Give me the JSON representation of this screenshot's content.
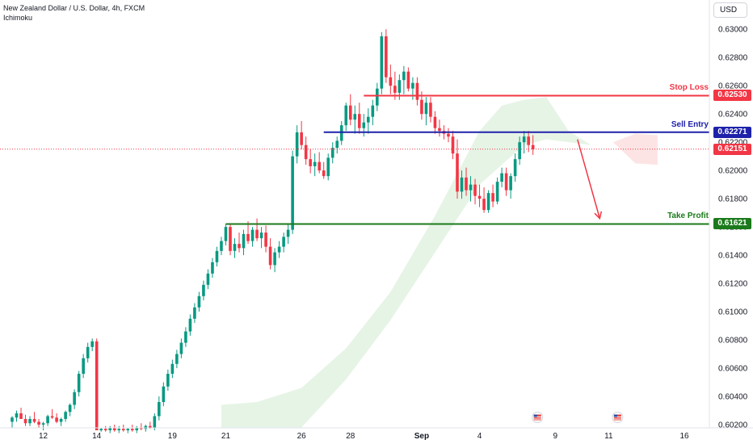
{
  "header": {
    "symbol_title": "New Zealand Dollar / U.S. Dollar, 4h, FXCM",
    "indicator": "Ichimoku",
    "currency_button": "USD"
  },
  "levels": {
    "stop_loss": {
      "label": "Stop Loss",
      "price": "0.62530",
      "value": 0.6253,
      "color": "#f23645"
    },
    "sell_entry": {
      "label": "Sell Entry",
      "price": "0.62271",
      "value": 0.62271,
      "color": "#1e22aa"
    },
    "current": {
      "price": "0.62151",
      "value": 0.62151,
      "color": "#f23645"
    },
    "take_profit": {
      "label": "Take Profit",
      "price": "0.61621",
      "value": 0.61621,
      "color": "#1b7a1b"
    }
  },
  "colors": {
    "bull": "#089981",
    "bear": "#f23645",
    "cloud": "#e6f4e6",
    "cloud_bear": "#fde4e4",
    "arrow": "#f23645"
  },
  "chart_data": {
    "type": "candlestick",
    "title": "New Zealand Dollar / U.S. Dollar, 4h, FXCM",
    "ylim": [
      0.6016,
      0.6315
    ],
    "y_ticks": [
      "0.63000",
      "0.62800",
      "0.62600",
      "0.62400",
      "0.62200",
      "0.62000",
      "0.61800",
      "0.61600",
      "0.61400",
      "0.61200",
      "0.61000",
      "0.60800",
      "0.60600",
      "0.60400",
      "0.60200"
    ],
    "y_tick_values": [
      0.63,
      0.628,
      0.626,
      0.624,
      0.622,
      0.62,
      0.618,
      0.616,
      0.614,
      0.612,
      0.61,
      0.608,
      0.606,
      0.604,
      0.602
    ],
    "x_ticks": [
      "12",
      "14",
      "19",
      "21",
      "26",
      "28",
      "Sep",
      "4",
      "9",
      "11",
      "16"
    ],
    "x_tick_index": [
      7,
      19,
      36,
      48,
      65,
      76,
      92,
      105,
      122,
      134,
      151
    ],
    "candles": [
      [
        0.6022,
        0.6026,
        0.6018,
        0.6025
      ],
      [
        0.6025,
        0.603,
        0.6022,
        0.6028
      ],
      [
        0.6028,
        0.6032,
        0.6024,
        0.6024
      ],
      [
        0.6024,
        0.6027,
        0.6019,
        0.6021
      ],
      [
        0.6021,
        0.6026,
        0.6019,
        0.6024
      ],
      [
        0.6024,
        0.6029,
        0.6021,
        0.6022
      ],
      [
        0.6022,
        0.6024,
        0.6018,
        0.602
      ],
      [
        0.602,
        0.6022,
        0.6016,
        0.6021
      ],
      [
        0.6021,
        0.6027,
        0.6019,
        0.6026
      ],
      [
        0.6026,
        0.6031,
        0.6024,
        0.6025
      ],
      [
        0.6025,
        0.6028,
        0.6021,
        0.6022
      ],
      [
        0.6022,
        0.6025,
        0.6019,
        0.6024
      ],
      [
        0.6024,
        0.603,
        0.6022,
        0.6029
      ],
      [
        0.6029,
        0.6035,
        0.6026,
        0.6034
      ],
      [
        0.6034,
        0.6045,
        0.6031,
        0.6043
      ],
      [
        0.6043,
        0.6058,
        0.604,
        0.6056
      ],
      [
        0.6056,
        0.607,
        0.6053,
        0.6067
      ],
      [
        0.6067,
        0.6078,
        0.6064,
        0.6075
      ],
      [
        0.6075,
        0.6081,
        0.6072,
        0.6079
      ],
      [
        0.6079,
        0.6081,
        0.6016,
        0.6016
      ],
      [
        0.6016,
        0.6018,
        0.6015,
        0.6017
      ],
      [
        0.6017,
        0.6019,
        0.6015,
        0.6016
      ],
      [
        0.6016,
        0.6019,
        0.6014,
        0.6018
      ],
      [
        0.6018,
        0.602,
        0.6015,
        0.6016
      ],
      [
        0.6016,
        0.6019,
        0.6014,
        0.6017
      ],
      [
        0.6017,
        0.602,
        0.6015,
        0.6016
      ],
      [
        0.6016,
        0.6018,
        0.6014,
        0.6017
      ],
      [
        0.6017,
        0.602,
        0.6015,
        0.6016
      ],
      [
        0.6016,
        0.6019,
        0.6014,
        0.6018
      ],
      [
        0.6018,
        0.6021,
        0.6016,
        0.6017
      ],
      [
        0.6017,
        0.602,
        0.6015,
        0.6019
      ],
      [
        0.6019,
        0.6022,
        0.6017,
        0.6018
      ],
      [
        0.6018,
        0.6028,
        0.6016,
        0.6026
      ],
      [
        0.6026,
        0.604,
        0.6023,
        0.6036
      ],
      [
        0.6036,
        0.605,
        0.6033,
        0.6047
      ],
      [
        0.6047,
        0.6059,
        0.6044,
        0.6056
      ],
      [
        0.6056,
        0.6066,
        0.6053,
        0.6063
      ],
      [
        0.6063,
        0.6073,
        0.606,
        0.607
      ],
      [
        0.607,
        0.6081,
        0.6067,
        0.6078
      ],
      [
        0.6078,
        0.6089,
        0.6075,
        0.6086
      ],
      [
        0.6086,
        0.6098,
        0.6083,
        0.6095
      ],
      [
        0.6095,
        0.6106,
        0.6092,
        0.6103
      ],
      [
        0.6103,
        0.6114,
        0.61,
        0.6111
      ],
      [
        0.6111,
        0.6122,
        0.6108,
        0.6119
      ],
      [
        0.6119,
        0.613,
        0.6116,
        0.6127
      ],
      [
        0.6127,
        0.6138,
        0.6124,
        0.6135
      ],
      [
        0.6135,
        0.6146,
        0.6132,
        0.6143
      ],
      [
        0.6143,
        0.6153,
        0.614,
        0.615
      ],
      [
        0.615,
        0.6162,
        0.6147,
        0.616
      ],
      [
        0.616,
        0.6162,
        0.614,
        0.6143
      ],
      [
        0.6143,
        0.6152,
        0.6138,
        0.6148
      ],
      [
        0.6148,
        0.6156,
        0.6142,
        0.6145
      ],
      [
        0.6145,
        0.6158,
        0.614,
        0.6155
      ],
      [
        0.6155,
        0.6164,
        0.6148,
        0.615
      ],
      [
        0.615,
        0.616,
        0.6146,
        0.6158
      ],
      [
        0.6158,
        0.6166,
        0.615,
        0.6152
      ],
      [
        0.6152,
        0.616,
        0.6145,
        0.6156
      ],
      [
        0.6156,
        0.6161,
        0.6142,
        0.6146
      ],
      [
        0.6146,
        0.6152,
        0.613,
        0.6133
      ],
      [
        0.6133,
        0.6145,
        0.6128,
        0.6142
      ],
      [
        0.6142,
        0.615,
        0.6138,
        0.6146
      ],
      [
        0.6146,
        0.6156,
        0.6142,
        0.6153
      ],
      [
        0.6153,
        0.6162,
        0.6148,
        0.6158
      ],
      [
        0.6158,
        0.6214,
        0.6155,
        0.621
      ],
      [
        0.621,
        0.6232,
        0.6205,
        0.6227
      ],
      [
        0.6227,
        0.6235,
        0.6215,
        0.6218
      ],
      [
        0.6218,
        0.6224,
        0.6204,
        0.6208
      ],
      [
        0.6208,
        0.6215,
        0.6198,
        0.6203
      ],
      [
        0.6203,
        0.6212,
        0.6196,
        0.6206
      ],
      [
        0.6206,
        0.6213,
        0.6198,
        0.62
      ],
      [
        0.62,
        0.6206,
        0.6194,
        0.6196
      ],
      [
        0.6196,
        0.6212,
        0.6193,
        0.6209
      ],
      [
        0.6209,
        0.622,
        0.6205,
        0.6216
      ],
      [
        0.6216,
        0.6224,
        0.6212,
        0.6221
      ],
      [
        0.6221,
        0.6235,
        0.6218,
        0.6232
      ],
      [
        0.6232,
        0.6248,
        0.6228,
        0.6246
      ],
      [
        0.6246,
        0.6254,
        0.6232,
        0.6236
      ],
      [
        0.6236,
        0.6246,
        0.6226,
        0.624
      ],
      [
        0.624,
        0.6248,
        0.6226,
        0.623
      ],
      [
        0.623,
        0.624,
        0.6224,
        0.6234
      ],
      [
        0.6234,
        0.6244,
        0.6226,
        0.6238
      ],
      [
        0.6238,
        0.625,
        0.6232,
        0.6246
      ],
      [
        0.6246,
        0.6262,
        0.6242,
        0.6258
      ],
      [
        0.6258,
        0.6298,
        0.6254,
        0.6295
      ],
      [
        0.6295,
        0.63,
        0.6262,
        0.6266
      ],
      [
        0.6266,
        0.6275,
        0.6254,
        0.626
      ],
      [
        0.626,
        0.627,
        0.625,
        0.6255
      ],
      [
        0.6255,
        0.6268,
        0.625,
        0.6264
      ],
      [
        0.6264,
        0.6274,
        0.6254,
        0.627
      ],
      [
        0.627,
        0.6273,
        0.6256,
        0.6258
      ],
      [
        0.6258,
        0.6266,
        0.625,
        0.6262
      ],
      [
        0.6262,
        0.6266,
        0.6246,
        0.625
      ],
      [
        0.625,
        0.6256,
        0.6236,
        0.624
      ],
      [
        0.624,
        0.6252,
        0.6232,
        0.6248
      ],
      [
        0.6248,
        0.6252,
        0.6234,
        0.6238
      ],
      [
        0.6238,
        0.6242,
        0.6226,
        0.623
      ],
      [
        0.623,
        0.6236,
        0.6224,
        0.6228
      ],
      [
        0.6228,
        0.6232,
        0.6222,
        0.6226
      ],
      [
        0.6226,
        0.623,
        0.622,
        0.6224
      ],
      [
        0.6224,
        0.6228,
        0.6208,
        0.6212
      ],
      [
        0.6212,
        0.6222,
        0.618,
        0.6185
      ],
      [
        0.6185,
        0.62,
        0.618,
        0.6195
      ],
      [
        0.6195,
        0.6202,
        0.6182,
        0.6186
      ],
      [
        0.6186,
        0.6196,
        0.6178,
        0.619
      ],
      [
        0.619,
        0.6194,
        0.6176,
        0.6182
      ],
      [
        0.6182,
        0.619,
        0.6174,
        0.618
      ],
      [
        0.618,
        0.6188,
        0.617,
        0.6172
      ],
      [
        0.6172,
        0.6186,
        0.617,
        0.6184
      ],
      [
        0.6184,
        0.619,
        0.6174,
        0.6178
      ],
      [
        0.6178,
        0.6195,
        0.6176,
        0.6192
      ],
      [
        0.6192,
        0.6202,
        0.6188,
        0.6198
      ],
      [
        0.6198,
        0.6202,
        0.6182,
        0.6186
      ],
      [
        0.6186,
        0.6198,
        0.618,
        0.6196
      ],
      [
        0.6196,
        0.6212,
        0.6192,
        0.6208
      ],
      [
        0.6208,
        0.6224,
        0.6204,
        0.622
      ],
      [
        0.622,
        0.6228,
        0.6212,
        0.6224
      ],
      [
        0.6224,
        0.6228,
        0.6213,
        0.6218
      ],
      [
        0.6218,
        0.6225,
        0.6211,
        0.6215
      ]
    ],
    "ichimoku_cloud": {
      "upper": [
        [
          47,
          0.6034
        ],
        [
          55,
          0.6036
        ],
        [
          65,
          0.6046
        ],
        [
          75,
          0.6074
        ],
        [
          85,
          0.6114
        ],
        [
          95,
          0.6168
        ],
        [
          100,
          0.6198
        ],
        [
          105,
          0.6228
        ],
        [
          110,
          0.6246
        ],
        [
          115,
          0.625
        ],
        [
          120,
          0.6252
        ],
        [
          125,
          0.6228
        ],
        [
          130,
          0.6218
        ],
        [
          135,
          0.622
        ]
      ],
      "lower": [
        [
          47,
          0.6018
        ],
        [
          55,
          0.6018
        ],
        [
          65,
          0.6018
        ],
        [
          75,
          0.6052
        ],
        [
          85,
          0.6094
        ],
        [
          95,
          0.6142
        ],
        [
          100,
          0.6166
        ],
        [
          105,
          0.619
        ],
        [
          110,
          0.6204
        ],
        [
          115,
          0.6218
        ],
        [
          120,
          0.6222
        ],
        [
          125,
          0.622
        ],
        [
          130,
          0.6218
        ],
        [
          135,
          0.622
        ]
      ],
      "bear_upper": [
        [
          135,
          0.622
        ],
        [
          140,
          0.6226
        ],
        [
          145,
          0.6225
        ]
      ],
      "bear_lower": [
        [
          135,
          0.622
        ],
        [
          140,
          0.6205
        ],
        [
          145,
          0.6204
        ]
      ]
    },
    "lines": [
      {
        "name": "Stop Loss",
        "value": 0.6253,
        "from_index": 79
      },
      {
        "name": "Sell Entry",
        "value": 0.62271,
        "from_index": 70
      },
      {
        "name": "Take Profit",
        "value": 0.61621,
        "from_index": 48
      }
    ],
    "arrow": {
      "from": [
        127,
        0.6222
      ],
      "to": [
        132,
        0.6166
      ]
    }
  }
}
